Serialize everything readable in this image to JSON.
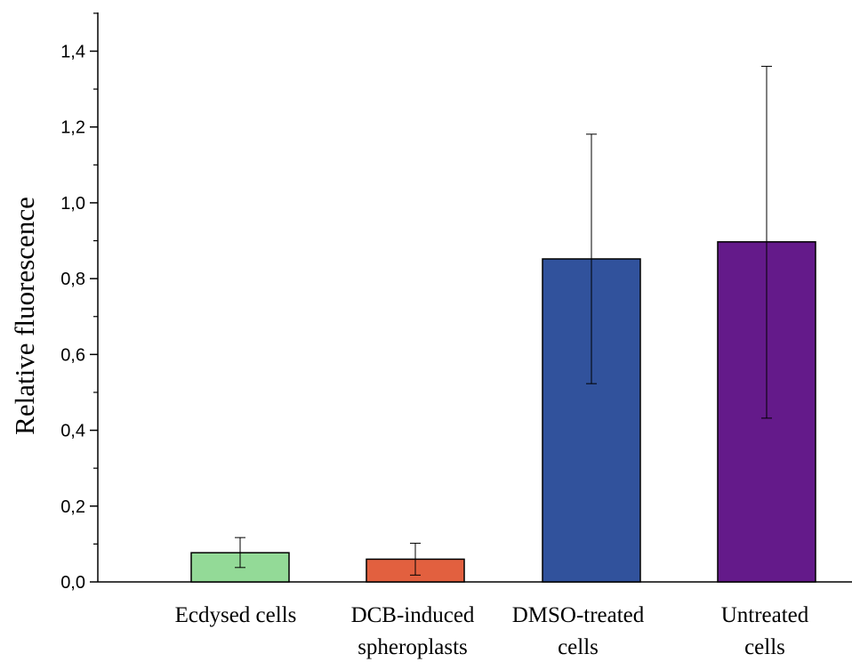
{
  "chart_data": {
    "type": "bar",
    "title": "",
    "xlabel": "",
    "ylabel": "Relative fluorescence",
    "ylim": [
      0,
      1.5
    ],
    "y_ticks": [
      "0,0",
      "0,2",
      "0,4",
      "0,6",
      "0,8",
      "1,0",
      "1,2",
      "1,4"
    ],
    "y_tick_values": [
      0,
      0.2,
      0.4,
      0.6,
      0.8,
      1.0,
      1.2,
      1.4
    ],
    "categories": [
      [
        "Ecdysed cells"
      ],
      [
        "DCB-induced",
        "spheroplasts"
      ],
      [
        "DMSO-treated",
        "cells"
      ],
      [
        "Untreated",
        "cells"
      ]
    ],
    "values": [
      0.077,
      0.06,
      0.852,
      0.897
    ],
    "error_low": [
      0.038,
      0.018,
      0.523,
      0.432
    ],
    "error_high": [
      0.117,
      0.102,
      1.181,
      1.36
    ],
    "colors": [
      "#93da97",
      "#e2603f",
      "#31529c",
      "#641a8a"
    ],
    "grid": false
  }
}
